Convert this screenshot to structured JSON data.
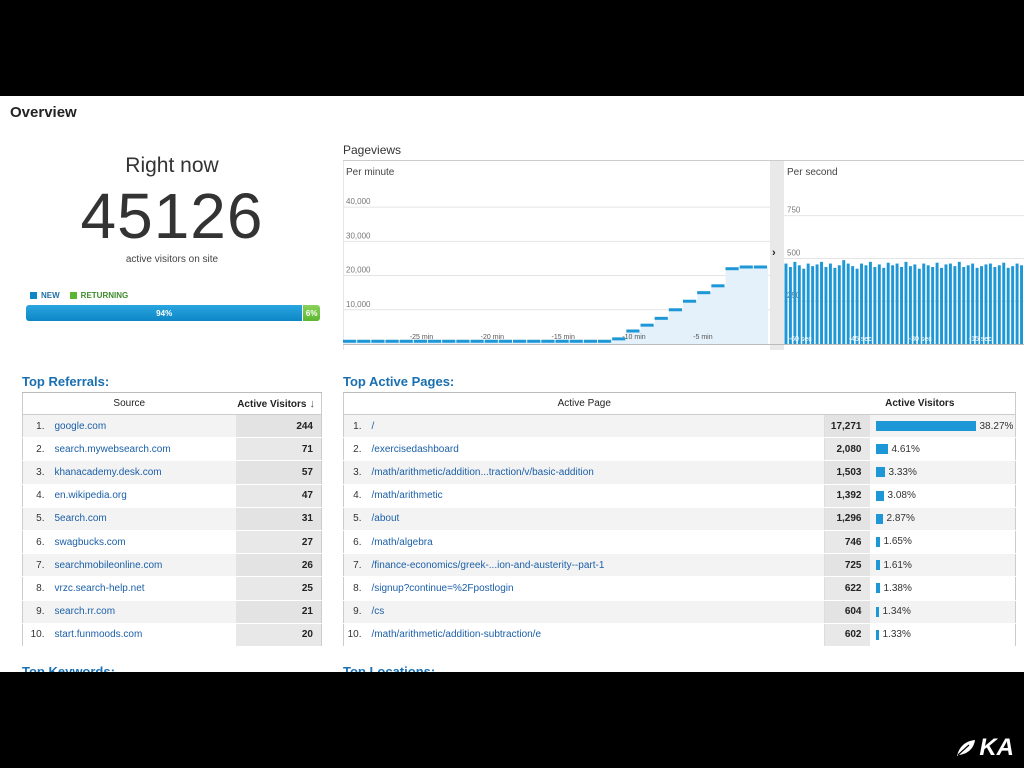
{
  "header": {
    "title": "Overview"
  },
  "right_now": {
    "label": "Right now",
    "value": "45126",
    "sub": "active visitors on site",
    "legend_new": "NEW",
    "legend_returning": "RETURNING",
    "new_pct_label": "94%",
    "returning_pct_label": "6%",
    "new_fraction": 0.94,
    "returning_fraction": 0.06,
    "new_color": "#0e86c6",
    "returning_color": "#5ab531"
  },
  "pageviews": {
    "title": "Pageviews",
    "per_minute_label": "Per minute",
    "per_second_label": "Per second"
  },
  "chart_data": [
    {
      "type": "line",
      "title": "Per minute",
      "y_ticks": [
        "10,000",
        "20,000",
        "30,000",
        "40,000"
      ],
      "ylim": [
        0,
        45000
      ],
      "x_ticks": [
        "-25 min",
        "-20 min",
        "-15 min",
        "-10 min",
        "-5 min"
      ],
      "x": [
        -30,
        -29,
        -28,
        -27,
        -26,
        -25,
        -24,
        -23,
        -22,
        -21,
        -20,
        -19,
        -18,
        -17,
        -16,
        -15,
        -14,
        -13,
        -12,
        -11,
        -10,
        -9,
        -8,
        -7,
        -6,
        -5,
        -4,
        -3,
        -2,
        -1
      ],
      "values": [
        800,
        800,
        800,
        800,
        800,
        800,
        800,
        800,
        800,
        800,
        800,
        800,
        800,
        800,
        800,
        800,
        800,
        800,
        800,
        1500,
        3800,
        5500,
        7500,
        10000,
        12500,
        15000,
        17000,
        22000,
        22500,
        22500
      ],
      "grid": true,
      "color": "#1e97d6"
    },
    {
      "type": "bar",
      "title": "Per second",
      "y_ticks": [
        "250",
        "500",
        "750"
      ],
      "ylim": [
        0,
        900
      ],
      "x_ticks": [
        "-60 sec",
        "-45 sec",
        "-30 sec",
        "-15 sec"
      ],
      "values": [
        470,
        450,
        480,
        460,
        440,
        470,
        455,
        465,
        480,
        450,
        470,
        445,
        460,
        490,
        470,
        455,
        440,
        470,
        460,
        480,
        450,
        465,
        445,
        475,
        460,
        470,
        450,
        480,
        455,
        465,
        440,
        470,
        460,
        450,
        475,
        445,
        465,
        470,
        455,
        480,
        450,
        460,
        470,
        445,
        455,
        465,
        470,
        450,
        460,
        475,
        445,
        455,
        470,
        460
      ],
      "grid": true,
      "color": "#1e97d6"
    }
  ],
  "referrals": {
    "title": "Top Referrals:",
    "col_source": "Source",
    "col_visitors": "Active Visitors",
    "rows": [
      {
        "n": "1.",
        "source": "google.com",
        "value": "244"
      },
      {
        "n": "2.",
        "source": "search.mywebsearch.com",
        "value": "71"
      },
      {
        "n": "3.",
        "source": "khanacademy.desk.com",
        "value": "57"
      },
      {
        "n": "4.",
        "source": "en.wikipedia.org",
        "value": "47"
      },
      {
        "n": "5.",
        "source": "5earch.com",
        "value": "31"
      },
      {
        "n": "6.",
        "source": "swagbucks.com",
        "value": "27"
      },
      {
        "n": "7.",
        "source": "searchmobileonline.com",
        "value": "26"
      },
      {
        "n": "8.",
        "source": "vrzc.search-help.net",
        "value": "25"
      },
      {
        "n": "9.",
        "source": "search.rr.com",
        "value": "21"
      },
      {
        "n": "10.",
        "source": "start.funmoods.com",
        "value": "20"
      }
    ]
  },
  "pages": {
    "title": "Top Active Pages:",
    "col_page": "Active Page",
    "col_visitors": "Active Visitors",
    "rows": [
      {
        "n": "1.",
        "page": "/",
        "value": "17,271",
        "pct": "38.27%",
        "share": 0.3827
      },
      {
        "n": "2.",
        "page": "/exercisedashboard",
        "value": "2,080",
        "pct": "4.61%",
        "share": 0.0461
      },
      {
        "n": "3.",
        "page": "/math/arithmetic/addition...traction/v/basic-addition",
        "value": "1,503",
        "pct": "3.33%",
        "share": 0.0333
      },
      {
        "n": "4.",
        "page": "/math/arithmetic",
        "value": "1,392",
        "pct": "3.08%",
        "share": 0.0308
      },
      {
        "n": "5.",
        "page": "/about",
        "value": "1,296",
        "pct": "2.87%",
        "share": 0.0287
      },
      {
        "n": "6.",
        "page": "/math/algebra",
        "value": "746",
        "pct": "1.65%",
        "share": 0.0165
      },
      {
        "n": "7.",
        "page": "/finance-economics/greek-...ion-and-austerity--part-1",
        "value": "725",
        "pct": "1.61%",
        "share": 0.0161
      },
      {
        "n": "8.",
        "page": "/signup?continue=%2Fpostlogin",
        "value": "622",
        "pct": "1.38%",
        "share": 0.0138
      },
      {
        "n": "9.",
        "page": "/cs",
        "value": "604",
        "pct": "1.34%",
        "share": 0.0134
      },
      {
        "n": "10.",
        "page": "/math/arithmetic/addition-subtraction/e",
        "value": "602",
        "pct": "1.33%",
        "share": 0.0133
      }
    ]
  },
  "cut_titles": {
    "keywords": "Top Keywords:",
    "locations": "Top Locations:"
  },
  "logo": {
    "text": "KA"
  }
}
